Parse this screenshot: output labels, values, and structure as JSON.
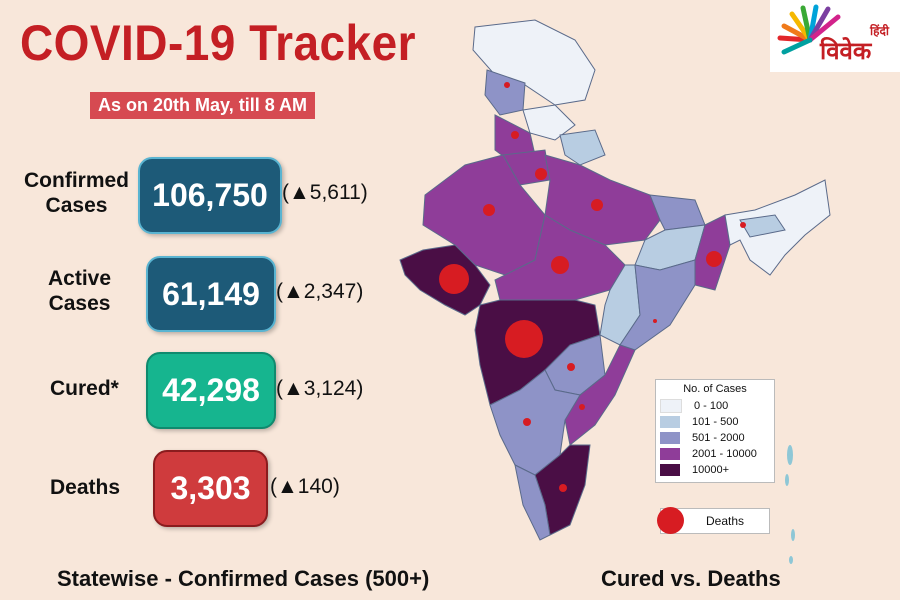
{
  "header": {
    "title": "COVID-19 Tracker",
    "subtitle": "As on 20th May, till 8 AM"
  },
  "logo": {
    "hindi_top": "हिंदी",
    "hindi_main": "विवेक"
  },
  "stats": {
    "confirmed": {
      "label_line1": "Confirmed",
      "label_line2": "Cases",
      "value": "106,750",
      "delta": "(▲5,611)",
      "color": "#1d5a78"
    },
    "active": {
      "label_line1": "Active",
      "label_line2": "Cases",
      "value": "61,149",
      "delta": "(▲2,347)",
      "color": "#1d5a78"
    },
    "cured": {
      "label": "Cured*",
      "value": "42,298",
      "delta": "(▲3,124)",
      "color": "#16b58f"
    },
    "deaths": {
      "label": "Deaths",
      "value": "3,303",
      "delta": "(▲140)",
      "color": "#cf3b3d"
    }
  },
  "legend": {
    "title": "No. of Cases",
    "items": [
      {
        "label": "0 - 100",
        "color": "#eef2f8"
      },
      {
        "label": "101 - 500",
        "color": "#b8cde2"
      },
      {
        "label": "501 - 2000",
        "color": "#8e93c7"
      },
      {
        "label": "2001 - 10000",
        "color": "#8f3d99"
      },
      {
        "label": "10000+",
        "color": "#4a0e45"
      }
    ],
    "deaths_label": "Deaths"
  },
  "footer": {
    "left": "Statewise - Confirmed Cases (500+)",
    "right": "Cured vs. Deaths"
  }
}
